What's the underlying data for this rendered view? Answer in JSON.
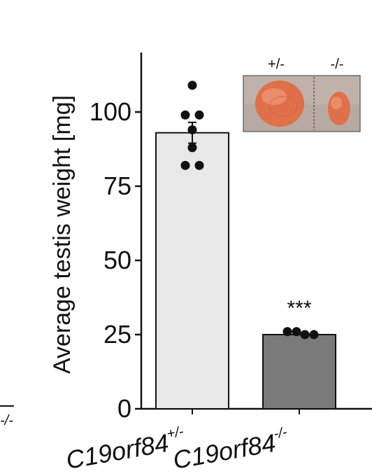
{
  "chart_data": {
    "type": "bar",
    "title": "",
    "ylabel": "Average testis weight [mg]",
    "ylim": [
      0,
      118
    ],
    "yticks": [
      0,
      25,
      50,
      75,
      100
    ],
    "ytick_labels": [
      "0",
      "25",
      "50",
      "75",
      "100"
    ],
    "categories": [
      {
        "base": "C19orf84",
        "sup": "+/-"
      },
      {
        "base": "C19orf84",
        "sup": "-/-"
      }
    ],
    "values": [
      93,
      25
    ],
    "error": [
      3.5,
      0.5
    ],
    "bar_colors": [
      "#e8e8e8",
      "#7a7a7a"
    ],
    "points": [
      [
        109,
        99,
        99,
        94,
        88,
        82,
        82
      ],
      [
        26,
        26,
        25,
        25
      ]
    ],
    "annotations": [
      {
        "category_index": 1,
        "text": "***"
      }
    ],
    "inset": {
      "labels": [
        "+/-",
        "-/-"
      ],
      "background": "#b7aaa3",
      "tissue_color": "#e0704a"
    },
    "cropped_left_fragments": [
      "-/-"
    ]
  }
}
